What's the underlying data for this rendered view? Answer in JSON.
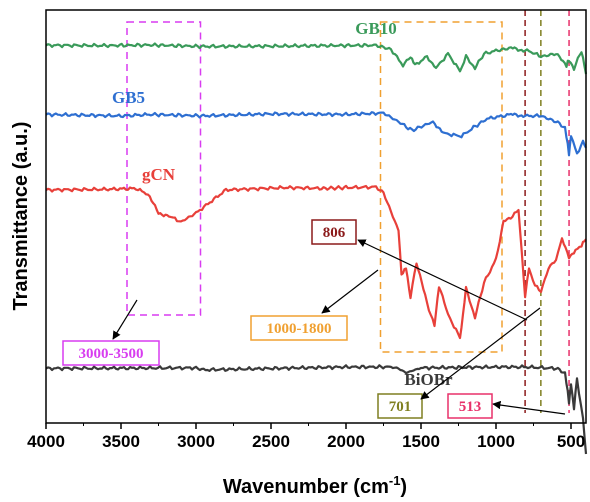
{
  "chart_data": {
    "type": "line",
    "xlabel": "Wavenumber (cm",
    "xlabel_sup": "-1",
    "xlabel_suffix": ")",
    "ylabel": "Transmittance (a.u.)",
    "xlim": [
      4000,
      400
    ],
    "x_reversed": true,
    "y_ticks_shown": false,
    "grid": false,
    "x_ticks": [
      4000,
      3500,
      3000,
      2500,
      2000,
      1500,
      1000,
      500
    ],
    "x_tick_labels": [
      "4000",
      "3500",
      "3000",
      "2500",
      "2000",
      "1500",
      "1000",
      "500"
    ],
    "series": [
      {
        "name": "GB10",
        "color": "#3a9a5a",
        "label_x": 1800,
        "points": [
          [
            4000,
            0.1
          ],
          [
            3600,
            0.2
          ],
          [
            3300,
            0.0
          ],
          [
            2950,
            0.5
          ],
          [
            2500,
            0.4
          ],
          [
            2100,
            0.2
          ],
          [
            1800,
            0.1
          ],
          [
            1700,
            1.5
          ],
          [
            1620,
            7.0
          ],
          [
            1570,
            4.0
          ],
          [
            1540,
            7.0
          ],
          [
            1460,
            4.0
          ],
          [
            1400,
            8.0
          ],
          [
            1320,
            3.0
          ],
          [
            1240,
            9.0
          ],
          [
            1200,
            4.0
          ],
          [
            1140,
            8.0
          ],
          [
            1080,
            3.0
          ],
          [
            1000,
            2.0
          ],
          [
            900,
            1.0
          ],
          [
            806,
            2.0
          ],
          [
            780,
            2.0
          ],
          [
            700,
            4.0
          ],
          [
            600,
            3.0
          ],
          [
            530,
            7.0
          ],
          [
            513,
            5.0
          ],
          [
            480,
            8.0
          ],
          [
            430,
            2.0
          ],
          [
            400,
            10.0
          ]
        ]
      },
      {
        "name": "GB5",
        "color": "#2e6fd1",
        "label_x": 3450,
        "points": [
          [
            4000,
            0.5
          ],
          [
            3500,
            1.0
          ],
          [
            3300,
            0.5
          ],
          [
            2950,
            1.0
          ],
          [
            2500,
            0.3
          ],
          [
            2000,
            0.5
          ],
          [
            1750,
            0.0
          ],
          [
            1650,
            3.0
          ],
          [
            1560,
            6.0
          ],
          [
            1420,
            3.0
          ],
          [
            1350,
            7.0
          ],
          [
            1230,
            8.0
          ],
          [
            1150,
            5.0
          ],
          [
            1060,
            2.0
          ],
          [
            900,
            0.5
          ],
          [
            806,
            1.0
          ],
          [
            700,
            1.0
          ],
          [
            600,
            3.0
          ],
          [
            540,
            5.0
          ],
          [
            513,
            14.0
          ],
          [
            500,
            8.0
          ],
          [
            460,
            14.0
          ],
          [
            420,
            10.0
          ],
          [
            400,
            12.0
          ]
        ]
      },
      {
        "name": "gCN",
        "color": "#e8403a",
        "label_x": 3250,
        "points": [
          [
            4000,
            1.0
          ],
          [
            3600,
            0.8
          ],
          [
            3400,
            0.5
          ],
          [
            3320,
            2.5
          ],
          [
            3250,
            9.0
          ],
          [
            3180,
            10.0
          ],
          [
            3100,
            12.0
          ],
          [
            3000,
            9.0
          ],
          [
            2800,
            1.0
          ],
          [
            2400,
            0.2
          ],
          [
            2150,
            0.5
          ],
          [
            2000,
            0.2
          ],
          [
            1800,
            0.0
          ],
          [
            1750,
            2.0
          ],
          [
            1650,
            15.0
          ],
          [
            1630,
            30.0
          ],
          [
            1600,
            28.0
          ],
          [
            1570,
            38.0
          ],
          [
            1530,
            26.0
          ],
          [
            1460,
            40.0
          ],
          [
            1410,
            48.0
          ],
          [
            1380,
            34.0
          ],
          [
            1320,
            44.0
          ],
          [
            1240,
            52.0
          ],
          [
            1220,
            44.0
          ],
          [
            1200,
            35.0
          ],
          [
            1140,
            45.0
          ],
          [
            1080,
            33.0
          ],
          [
            1000,
            25.0
          ],
          [
            950,
            12.0
          ],
          [
            890,
            10.0
          ],
          [
            850,
            8.0
          ],
          [
            806,
            38.0
          ],
          [
            780,
            28.0
          ],
          [
            740,
            34.0
          ],
          [
            700,
            36.0
          ],
          [
            650,
            28.0
          ],
          [
            600,
            25.0
          ],
          [
            560,
            18.0
          ],
          [
            513,
            24.0
          ],
          [
            470,
            22.0
          ],
          [
            430,
            20.0
          ],
          [
            400,
            18.0
          ]
        ]
      },
      {
        "name": "BiOBr",
        "color": "#3a3a3a",
        "label_x": 1450,
        "points": [
          [
            4000,
            0.5
          ],
          [
            3000,
            0.3
          ],
          [
            2950,
            1.0
          ],
          [
            2500,
            0.5
          ],
          [
            2000,
            0.0
          ],
          [
            1700,
            0.0
          ],
          [
            1650,
            0.5
          ],
          [
            1600,
            2.0
          ],
          [
            1500,
            0.3
          ],
          [
            1000,
            0.0
          ],
          [
            800,
            0.0
          ],
          [
            600,
            0.5
          ],
          [
            540,
            2.0
          ],
          [
            513,
            12.0
          ],
          [
            500,
            6.0
          ],
          [
            480,
            14.0
          ],
          [
            460,
            4.0
          ],
          [
            420,
            18.0
          ],
          [
            400,
            30.0
          ]
        ]
      }
    ],
    "regions": [
      {
        "label": "3000-3500",
        "x_from": 3460,
        "x_to": 2970,
        "color": "#d83cf0"
      },
      {
        "label": "1000-1800",
        "x_from": 1770,
        "x_to": 960,
        "color": "#f0a030"
      }
    ],
    "markers": [
      {
        "label": "806",
        "x": 806,
        "color": "#8b1a1a"
      },
      {
        "label": "701",
        "x": 701,
        "color": "#7f7f20"
      },
      {
        "label": "513",
        "x": 513,
        "color": "#e8306a"
      }
    ]
  }
}
